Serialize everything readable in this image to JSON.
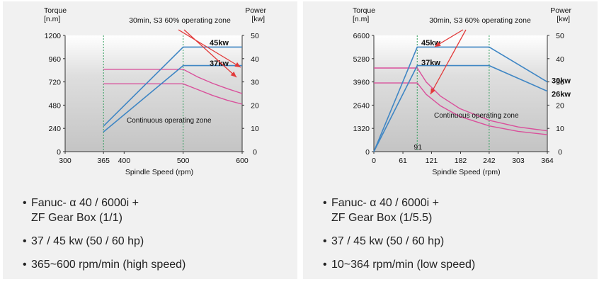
{
  "chart_data": [
    {
      "type": "line",
      "torque_label": "Torque",
      "torque_unit": "[n.m]",
      "power_label": "Power",
      "power_unit": "[kw]",
      "zone_label": "30min, S3 60% operating zone",
      "continuous_label": "Continuous operating zone",
      "xlabel": "Spindle Speed (rpm)",
      "x_ticks": [
        "300",
        "365",
        "400",
        "500",
        "600"
      ],
      "x_tick_values": [
        300,
        365,
        400,
        500,
        600
      ],
      "torque_ticks": [
        "0",
        "240",
        "480",
        "720",
        "960",
        "1200"
      ],
      "power_ticks": [
        "0",
        "10",
        "20",
        "30",
        "40",
        "50"
      ],
      "xlim": [
        300,
        600
      ],
      "torque_lim": [
        0,
        1200
      ],
      "power_lim": [
        0,
        50
      ],
      "guide_x": [
        365,
        500
      ],
      "power_series": [
        {
          "label": "45kw",
          "color": "#3f86c4",
          "points": [
            [
              365,
              11
            ],
            [
              500,
              45
            ],
            [
              600,
              45
            ]
          ]
        },
        {
          "label": "37kw",
          "color": "#3f86c4",
          "points": [
            [
              365,
              8.5
            ],
            [
              500,
              37
            ],
            [
              600,
              37
            ]
          ]
        }
      ],
      "torque_series": [
        {
          "color": "#d9509b",
          "points": [
            [
              365,
              850
            ],
            [
              500,
              850
            ],
            [
              525,
              770
            ],
            [
              550,
              705
            ],
            [
              575,
              650
            ],
            [
              600,
              600
            ]
          ]
        },
        {
          "color": "#d9509b",
          "points": [
            [
              365,
              700
            ],
            [
              500,
              700
            ],
            [
              525,
              640
            ],
            [
              550,
              580
            ],
            [
              575,
              530
            ],
            [
              600,
              490
            ]
          ]
        }
      ]
    },
    {
      "type": "line",
      "torque_label": "Torque",
      "torque_unit": "[n.m]",
      "power_label": "Power",
      "power_unit": "[kw]",
      "zone_label": "30min, S3 60% operating zone",
      "continuous_label": "Continuous operating zone",
      "xlabel": "Spindle Speed (rpm)",
      "x_ticks": [
        "0",
        "61",
        "121",
        "182",
        "242",
        "303",
        "364"
      ],
      "x_tick_values": [
        0,
        61,
        121,
        182,
        242,
        303,
        364
      ],
      "torque_ticks": [
        "0",
        "1320",
        "2640",
        "3960",
        "5280",
        "6600"
      ],
      "power_ticks": [
        "0",
        "10",
        "20",
        "30",
        "40",
        "50"
      ],
      "xlim": [
        0,
        364
      ],
      "torque_lim": [
        0,
        6600
      ],
      "power_lim": [
        0,
        50
      ],
      "guide_x": [
        91,
        242
      ],
      "guide_label": "91",
      "power_series": [
        {
          "label": "45kw",
          "color": "#3f86c4",
          "points": [
            [
              0,
              0
            ],
            [
              91,
              45
            ],
            [
              242,
              45
            ],
            [
              364,
              30
            ]
          ]
        },
        {
          "label": "37kw",
          "color": "#3f86c4",
          "points": [
            [
              0,
              0
            ],
            [
              91,
              37
            ],
            [
              242,
              37
            ],
            [
              364,
              26
            ]
          ]
        }
      ],
      "power_end_labels": [
        "30kw",
        "26kw"
      ],
      "torque_series": [
        {
          "color": "#d9509b",
          "points": [
            [
              0,
              4750
            ],
            [
              91,
              4750
            ],
            [
              110,
              3950
            ],
            [
              140,
              3150
            ],
            [
              180,
              2450
            ],
            [
              242,
              1780
            ],
            [
              303,
              1400
            ],
            [
              364,
              1180
            ]
          ]
        },
        {
          "color": "#d9509b",
          "points": [
            [
              0,
              3900
            ],
            [
              91,
              3900
            ],
            [
              110,
              3250
            ],
            [
              140,
              2600
            ],
            [
              180,
              2000
            ],
            [
              242,
              1460
            ],
            [
              303,
              1150
            ],
            [
              364,
              960
            ]
          ]
        }
      ]
    }
  ],
  "specs": [
    {
      "motor": [
        "Fanuc- α 40 / 6000i +",
        "ZF Gear Box (1/1)"
      ],
      "power": "37 / 45 kw (50 / 60 hp)",
      "speed": "365~600 rpm/min (high speed)"
    },
    {
      "motor": [
        "Fanuc- α 40 / 6000i +",
        "ZF Gear Box (1/5.5)"
      ],
      "power": "37 / 45 kw (50 / 60 hp)",
      "speed": "10~364 rpm/min (low speed)"
    }
  ]
}
